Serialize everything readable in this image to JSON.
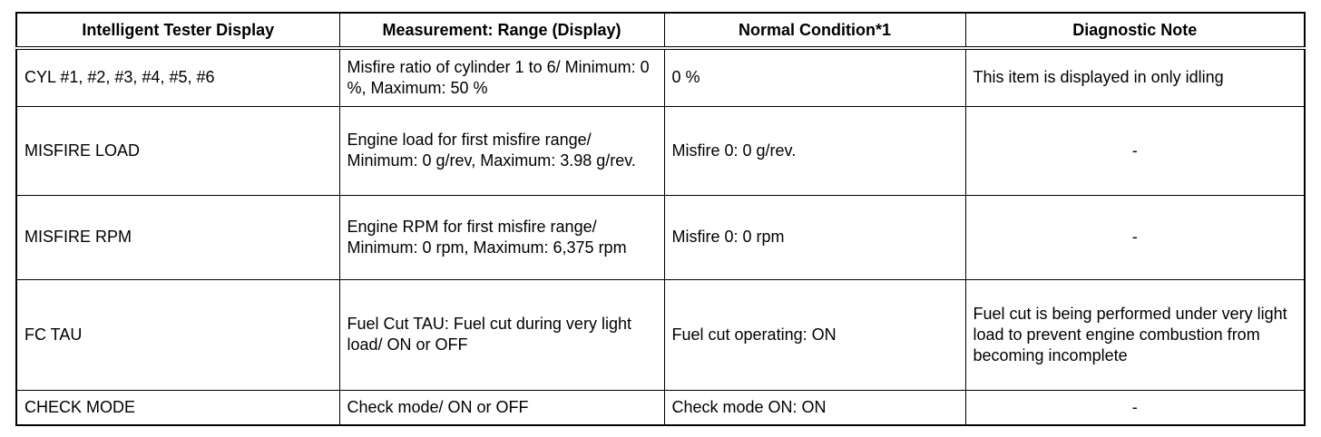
{
  "table": {
    "headers": [
      "Intelligent Tester Display",
      "Measurement: Range (Display)",
      "Normal Condition*1",
      "Diagnostic Note"
    ],
    "rows": [
      [
        "CYL #1, #2, #3, #4, #5, #6",
        "Misfire ratio of cylinder 1 to 6/ Minimum: 0 %, Maximum: 50 %",
        "0 %",
        "This item is displayed in only idling"
      ],
      [
        "MISFIRE LOAD",
        "Engine load for first misfire range/ Minimum: 0 g/rev, Maximum: 3.98 g/rev.",
        "Misfire 0: 0 g/rev.",
        "-"
      ],
      [
        "MISFIRE RPM",
        "Engine RPM for first misfire range/ Minimum: 0 rpm, Maximum: 6,375 rpm",
        "Misfire 0: 0 rpm",
        "-"
      ],
      [
        "FC TAU",
        "Fuel Cut TAU: Fuel cut during very light load/ ON or OFF",
        "Fuel cut operating: ON",
        "Fuel cut is being performed under very light load to prevent engine combustion from becoming incomplete"
      ],
      [
        "CHECK MODE",
        "Check mode/ ON or OFF",
        "Check mode ON: ON",
        "-"
      ]
    ]
  }
}
